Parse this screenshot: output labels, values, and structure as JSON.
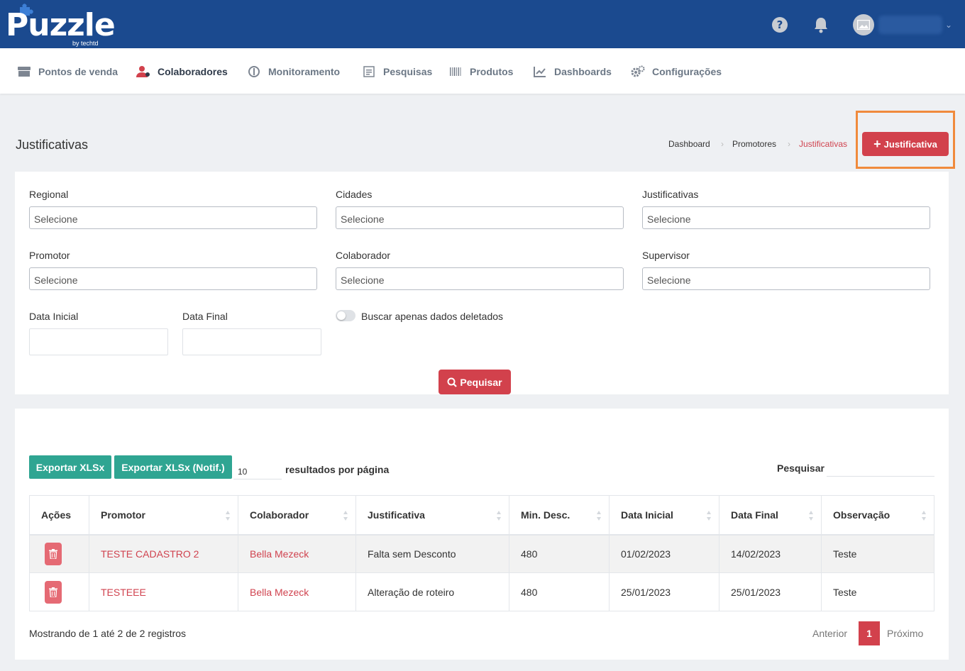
{
  "brand": {
    "name": "Puzzle",
    "tagline": "by techtd"
  },
  "nav": [
    {
      "label": "Pontos de venda",
      "icon": "store-icon"
    },
    {
      "label": "Colaboradores",
      "icon": "users-icon"
    },
    {
      "label": "Monitoramento",
      "icon": "monitor-icon"
    },
    {
      "label": "Pesquisas",
      "icon": "survey-icon"
    },
    {
      "label": "Produtos",
      "icon": "barcode-icon"
    },
    {
      "label": "Dashboards",
      "icon": "chart-icon"
    },
    {
      "label": "Configurações",
      "icon": "gears-icon"
    }
  ],
  "page": {
    "title": "Justificativas",
    "breadcrumb": [
      "Dashboard",
      "Promotores",
      "Justificativas"
    ],
    "add_button": "Justificativa"
  },
  "filters": {
    "regional": {
      "label": "Regional",
      "placeholder": "Selecione"
    },
    "cidades": {
      "label": "Cidades",
      "placeholder": "Selecione"
    },
    "justificativas": {
      "label": "Justificativas",
      "placeholder": "Selecione"
    },
    "promotor": {
      "label": "Promotor",
      "placeholder": "Selecione"
    },
    "colaborador": {
      "label": "Colaborador",
      "placeholder": "Selecione"
    },
    "supervisor": {
      "label": "Supervisor",
      "placeholder": "Selecione"
    },
    "data_inicial": {
      "label": "Data Inicial"
    },
    "data_final": {
      "label": "Data Final"
    },
    "deleted_toggle": "Buscar apenas dados deletados",
    "search_button": "Pequisar"
  },
  "results": {
    "export_xlsx": "Exportar XLSx",
    "export_xlsx_notif": "Exportar XLSx (Notif.)",
    "per_page_value": "10",
    "per_page_label": "resultados por página",
    "search_label": "Pesquisar",
    "columns": [
      "Ações",
      "Promotor",
      "Colaborador",
      "Justificativa",
      "Min. Desc.",
      "Data Inicial",
      "Data Final",
      "Observação"
    ],
    "rows": [
      {
        "promotor": "TESTE CADASTRO 2",
        "colaborador": "Bella Mezeck",
        "justificativa": "Falta sem Desconto",
        "min_desc": "480",
        "data_inicial": "01/02/2023",
        "data_final": "14/02/2023",
        "observacao": "Teste"
      },
      {
        "promotor": "TESTEEE",
        "colaborador": "Bella Mezeck",
        "justificativa": "Alteração de roteiro",
        "min_desc": "480",
        "data_inicial": "25/01/2023",
        "data_final": "25/01/2023",
        "observacao": "Teste"
      }
    ],
    "info": "Mostrando de 1 até 2 de 2 registros",
    "pager": {
      "prev": "Anterior",
      "current": "1",
      "next": "Próximo"
    }
  },
  "colors": {
    "brand_blue": "#1b4a8f",
    "accent_red": "#d2414c",
    "teal": "#2fa592",
    "highlight": "#f08a3c"
  }
}
